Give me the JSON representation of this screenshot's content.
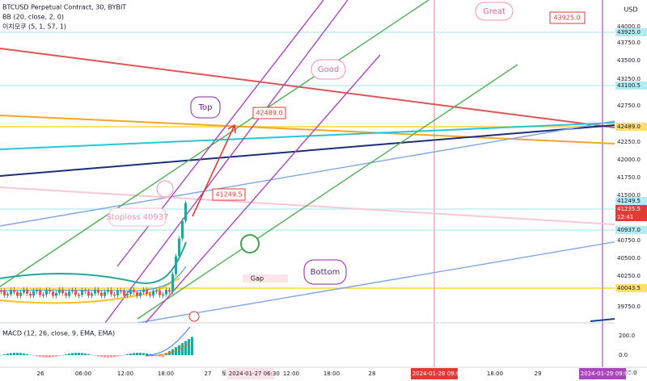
{
  "legend": {
    "symbol": "BTCUSD Perpetual Contract, 30, BYBIT",
    "bb": "BB (20, close, 2, 0)",
    "ichimoku": "이치모쿠 (5, 1, 57, 1)",
    "currency": "USD"
  },
  "price_axis": {
    "labels": [
      "44000.0",
      "43925.0",
      "43750.0",
      "43500.0",
      "43250.0",
      "43100.5",
      "42750.0",
      "42489.0",
      "42250.0",
      "42000.0",
      "41750.0",
      "41500.0",
      "41249.5",
      "41235.5",
      "40937.0",
      "40750.0",
      "40500.0",
      "40250.0",
      "40043.5",
      "39750.0"
    ],
    "countdown": "12:41"
  },
  "macd": {
    "label": "MACD (12, 26, close, 9, EMA, EMA)",
    "axis": [
      "200.0",
      "0.0",
      "-200.0"
    ]
  },
  "time_axis": [
    "26",
    "06:00",
    "12:00",
    "18:00",
    "27",
    "토 2024-01-27 06:30",
    "12:00",
    "18:00",
    "28",
    "일 2024-01-28 09:00",
    "18:00",
    "29",
    "월 2024-01-29 09:00"
  ],
  "annotations": {
    "great": "Great",
    "great_price": "43925.0",
    "good": "Good",
    "top": "Top",
    "top_price": "42489.0",
    "entry_price": "41249.5",
    "stoploss": "Stoploss 40937",
    "gap": "Gap",
    "bottom": "Bottom"
  }
}
